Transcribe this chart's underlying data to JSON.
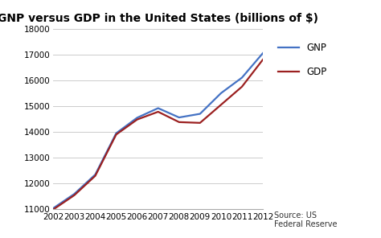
{
  "title": "GNP versus GDP in the United States (billions of $)",
  "years": [
    2002,
    2003,
    2004,
    2005,
    2006,
    2007,
    2008,
    2009,
    2010,
    2011,
    2012
  ],
  "gnp": [
    11050,
    11600,
    12350,
    13950,
    14550,
    14920,
    14560,
    14700,
    15500,
    16100,
    17050
  ],
  "gdp": [
    11000,
    11550,
    12300,
    13900,
    14480,
    14780,
    14380,
    14350,
    15050,
    15750,
    16800
  ],
  "gnp_color": "#4472C4",
  "gdp_color": "#9B2020",
  "ylim": [
    11000,
    18000
  ],
  "yticks": [
    11000,
    12000,
    13000,
    14000,
    15000,
    16000,
    17000,
    18000
  ],
  "legend_gnp": "GNP",
  "legend_gdp": "GDP",
  "source_text": "Source: US\nFederal Reserve",
  "bg_color": "#FFFFFF",
  "plot_bg": "#F5F5F5",
  "grid_color": "#CCCCCC",
  "title_fontsize": 10,
  "axis_fontsize": 7.5,
  "legend_fontsize": 8.5,
  "source_fontsize": 7
}
